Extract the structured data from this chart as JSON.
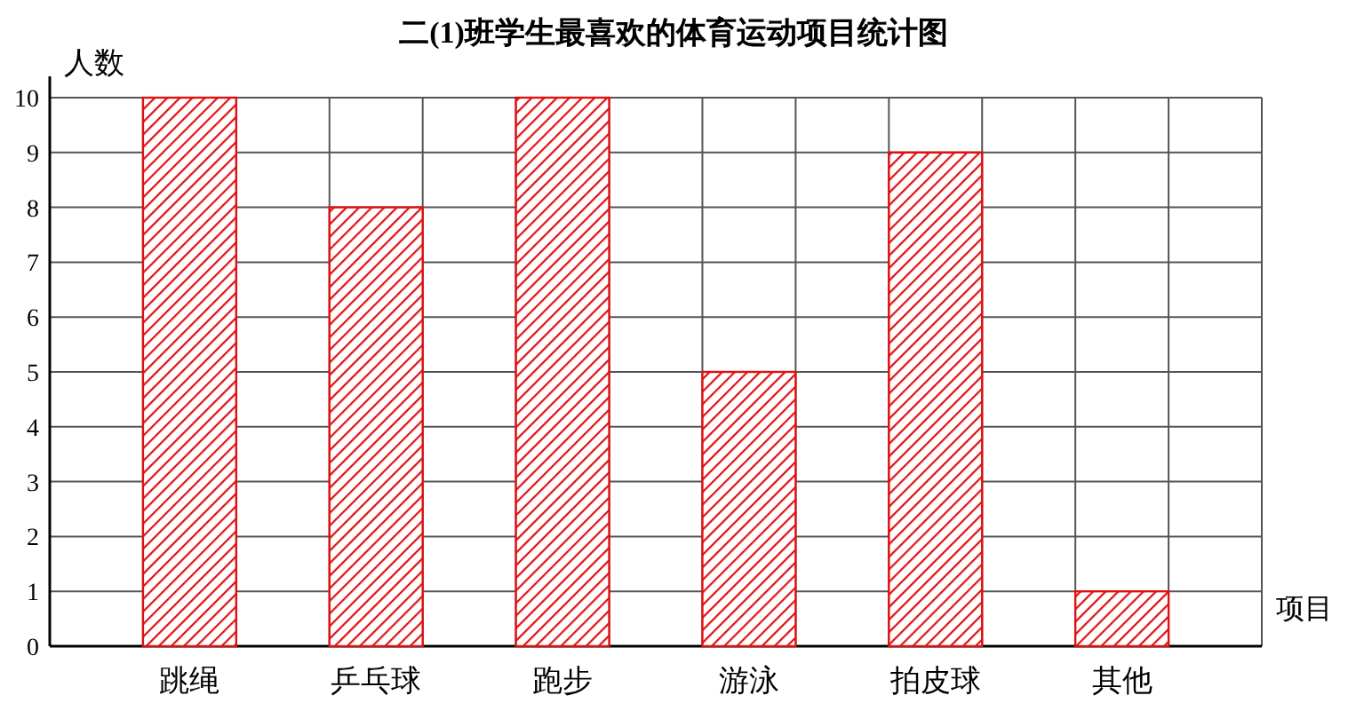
{
  "chart_data": {
    "type": "bar",
    "title": "二(1)班学生最喜欢的体育运动项目统计图",
    "xlabel": "项目",
    "ylabel": "人数",
    "categories": [
      "跳绳",
      "乒乓球",
      "跑步",
      "游泳",
      "拍皮球",
      "其他"
    ],
    "values": [
      10,
      8,
      10,
      5,
      9,
      1
    ],
    "color": "#e01010",
    "ylim": [
      0,
      10
    ],
    "yticks": [
      0,
      1,
      2,
      3,
      4,
      5,
      6,
      7,
      8,
      9,
      10
    ],
    "grid": true
  }
}
